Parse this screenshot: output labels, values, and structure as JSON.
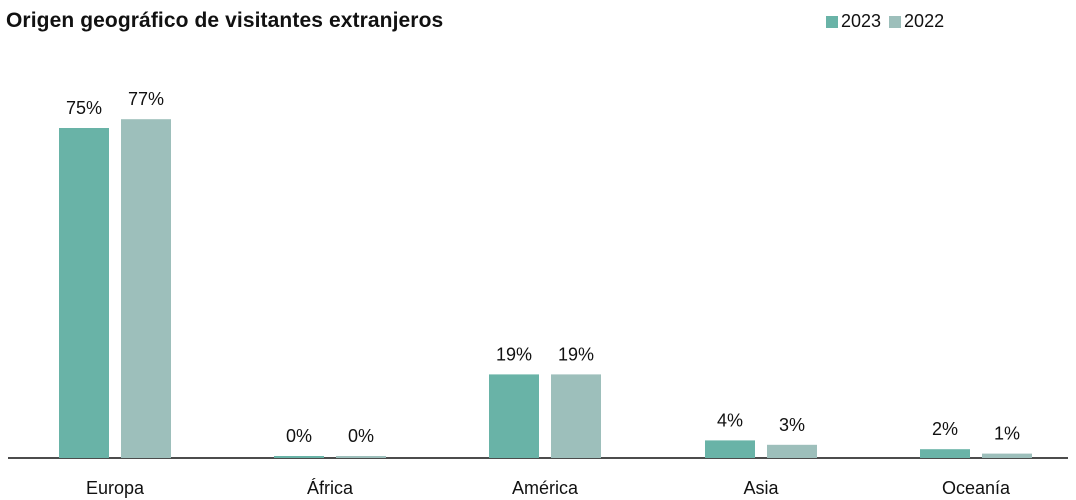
{
  "chart_data": {
    "type": "bar",
    "title": "Origen geográfico de visitantes extranjeros",
    "categories": [
      "Europa",
      "África",
      "América",
      "Asia",
      "Oceanía"
    ],
    "series": [
      {
        "name": "2023",
        "color": "#69b3a7",
        "values": [
          75,
          0,
          19,
          4,
          2
        ],
        "labels": [
          "75%",
          "0%",
          "19%",
          "4%",
          "2%"
        ]
      },
      {
        "name": "2022",
        "color": "#9dbfbb",
        "values": [
          77,
          0,
          19,
          3,
          1
        ],
        "labels": [
          "77%",
          "0%",
          "19%",
          "3%",
          "1%"
        ]
      }
    ],
    "ylim": [
      0,
      100
    ],
    "grid": false,
    "legend_position": "top-right",
    "value_unit": "%"
  }
}
